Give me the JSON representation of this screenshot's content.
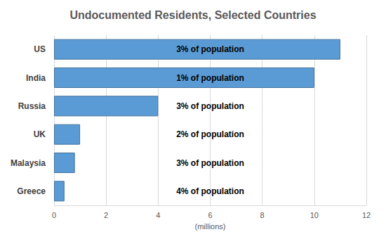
{
  "chart_data": {
    "type": "bar",
    "title": "Undocumented Residents, Selected Countries",
    "orientation": "horizontal",
    "categories": [
      "US",
      "India",
      "Russia",
      "UK",
      "Malaysia",
      "Greece"
    ],
    "values": [
      11,
      10,
      4,
      1,
      0.8,
      0.4
    ],
    "annotations": [
      "3% of population",
      "1% of population",
      "3% of population",
      "2% of population",
      "3% of population",
      "4% of population"
    ],
    "x_label": "(millions)",
    "color": "#5b9bd5",
    "xlim": [
      0,
      12
    ],
    "xticks": [
      0,
      2,
      4,
      6,
      8,
      10,
      12
    ],
    "grid": true
  }
}
